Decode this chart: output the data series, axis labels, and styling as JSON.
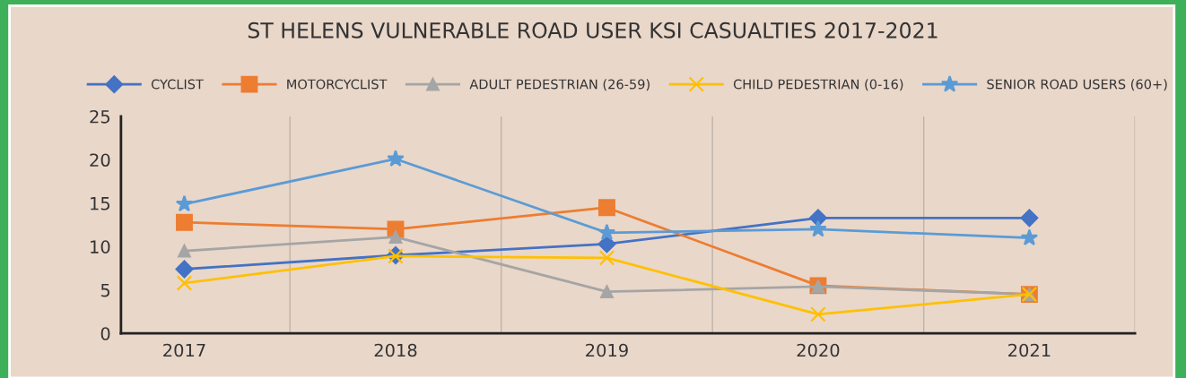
{
  "chart_data": {
    "type": "line",
    "title": "ST HELENS VULNERABLE ROAD USER KSI CASUALTIES 2017-2021",
    "categories": [
      "2017",
      "2018",
      "2019",
      "2020",
      "2021"
    ],
    "series": [
      {
        "name": "CYCLIST",
        "color": "#4472c4",
        "marker": "diamond",
        "values": [
          7.4,
          9.0,
          10.3,
          13.3,
          13.3
        ]
      },
      {
        "name": "MOTORCYCLIST",
        "color": "#ed7d31",
        "marker": "square",
        "values": [
          12.8,
          12.0,
          14.5,
          5.5,
          4.5
        ]
      },
      {
        "name": "ADULT PEDESTRIAN (26-59)",
        "color": "#a5a5a5",
        "marker": "triangle",
        "values": [
          9.5,
          11.1,
          4.8,
          5.4,
          4.5
        ]
      },
      {
        "name": "CHILD PEDESTRIAN (0-16)",
        "color": "#ffc000",
        "marker": "cross",
        "values": [
          5.8,
          8.9,
          8.7,
          2.2,
          4.5
        ]
      },
      {
        "name": "SENIOR ROAD USERS (60+)",
        "color": "#5b9bd5",
        "marker": "star",
        "values": [
          14.9,
          20.1,
          11.6,
          12.0,
          11.0
        ]
      }
    ],
    "ylim": [
      0,
      25
    ],
    "yticks": [
      0,
      5,
      10,
      15,
      20,
      25
    ],
    "grid": "x",
    "legend": "top",
    "line_style": "solid"
  }
}
